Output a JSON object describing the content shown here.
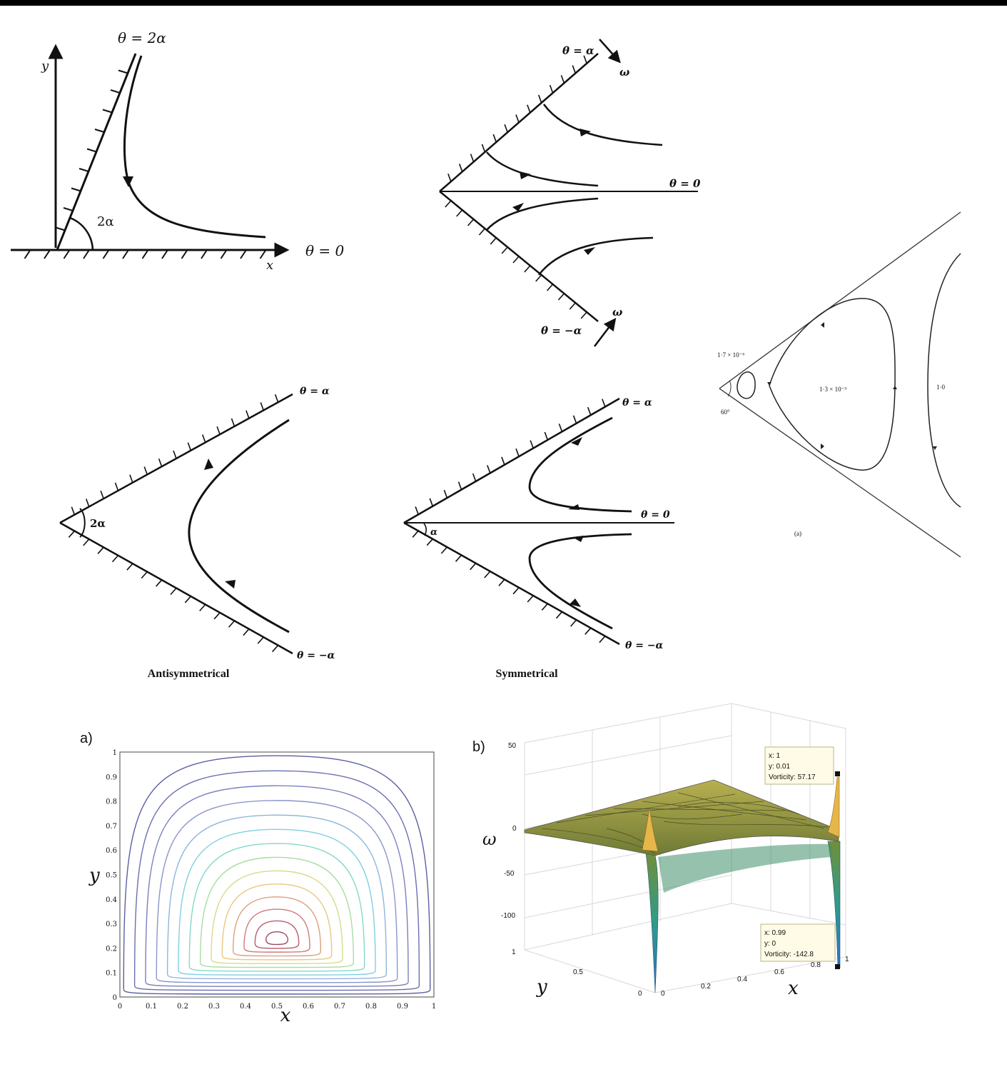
{
  "panel1": {
    "theta_top": "θ = 2α",
    "theta_bottom": "θ = 0",
    "y_axis": "y",
    "x_axis": "x",
    "angle": "2α"
  },
  "panel2": {
    "theta_top": "θ = α",
    "theta_mid": "θ = 0",
    "theta_bottom": "θ = −α",
    "omega_top": "ω",
    "omega_bottom": "ω"
  },
  "panel3": {
    "inner_value": "1·7 × 10⁻⁶",
    "middle_value": "1·3 × 10⁻³",
    "outer_value": "1·0",
    "angle": "60°",
    "caption": "(a)"
  },
  "panel4": {
    "theta_top": "θ = α",
    "theta_bottom": "θ = −α",
    "angle": "2α",
    "caption": "Antisymmetrical"
  },
  "panel5": {
    "theta_top": "θ = α",
    "theta_mid": "θ = 0",
    "theta_bottom": "θ = −α",
    "angle": "α",
    "caption": "Symmetrical"
  },
  "contour_plot": {
    "label": "a)",
    "xlabel": "x",
    "ylabel": "y",
    "xticks": [
      "0",
      "0.1",
      "0.2",
      "0.3",
      "0.4",
      "0.5",
      "0.6",
      "0.7",
      "0.8",
      "0.9",
      "1"
    ],
    "yticks": [
      "0",
      "0.1",
      "0.2",
      "0.3",
      "0.4",
      "0.5",
      "0.6",
      "0.7",
      "0.8",
      "0.9",
      "1"
    ]
  },
  "surface_plot": {
    "label": "b)",
    "zlabel": "ω",
    "ylabel": "y",
    "xlabel": "x",
    "zticks": [
      "50",
      "0",
      "-50",
      "-100"
    ],
    "yticks": [
      "1",
      "0.5",
      "0"
    ],
    "xticks": [
      "0",
      "0.2",
      "0.4",
      "0.6",
      "0.8",
      "1"
    ],
    "tip_top": {
      "x": "x: 1",
      "y": "y: 0.01",
      "v": "Vorticity: 57.17"
    },
    "tip_bottom": {
      "x": "x: 0.99",
      "y": "y: 0",
      "v": "Vorticity: -142.8"
    }
  }
}
